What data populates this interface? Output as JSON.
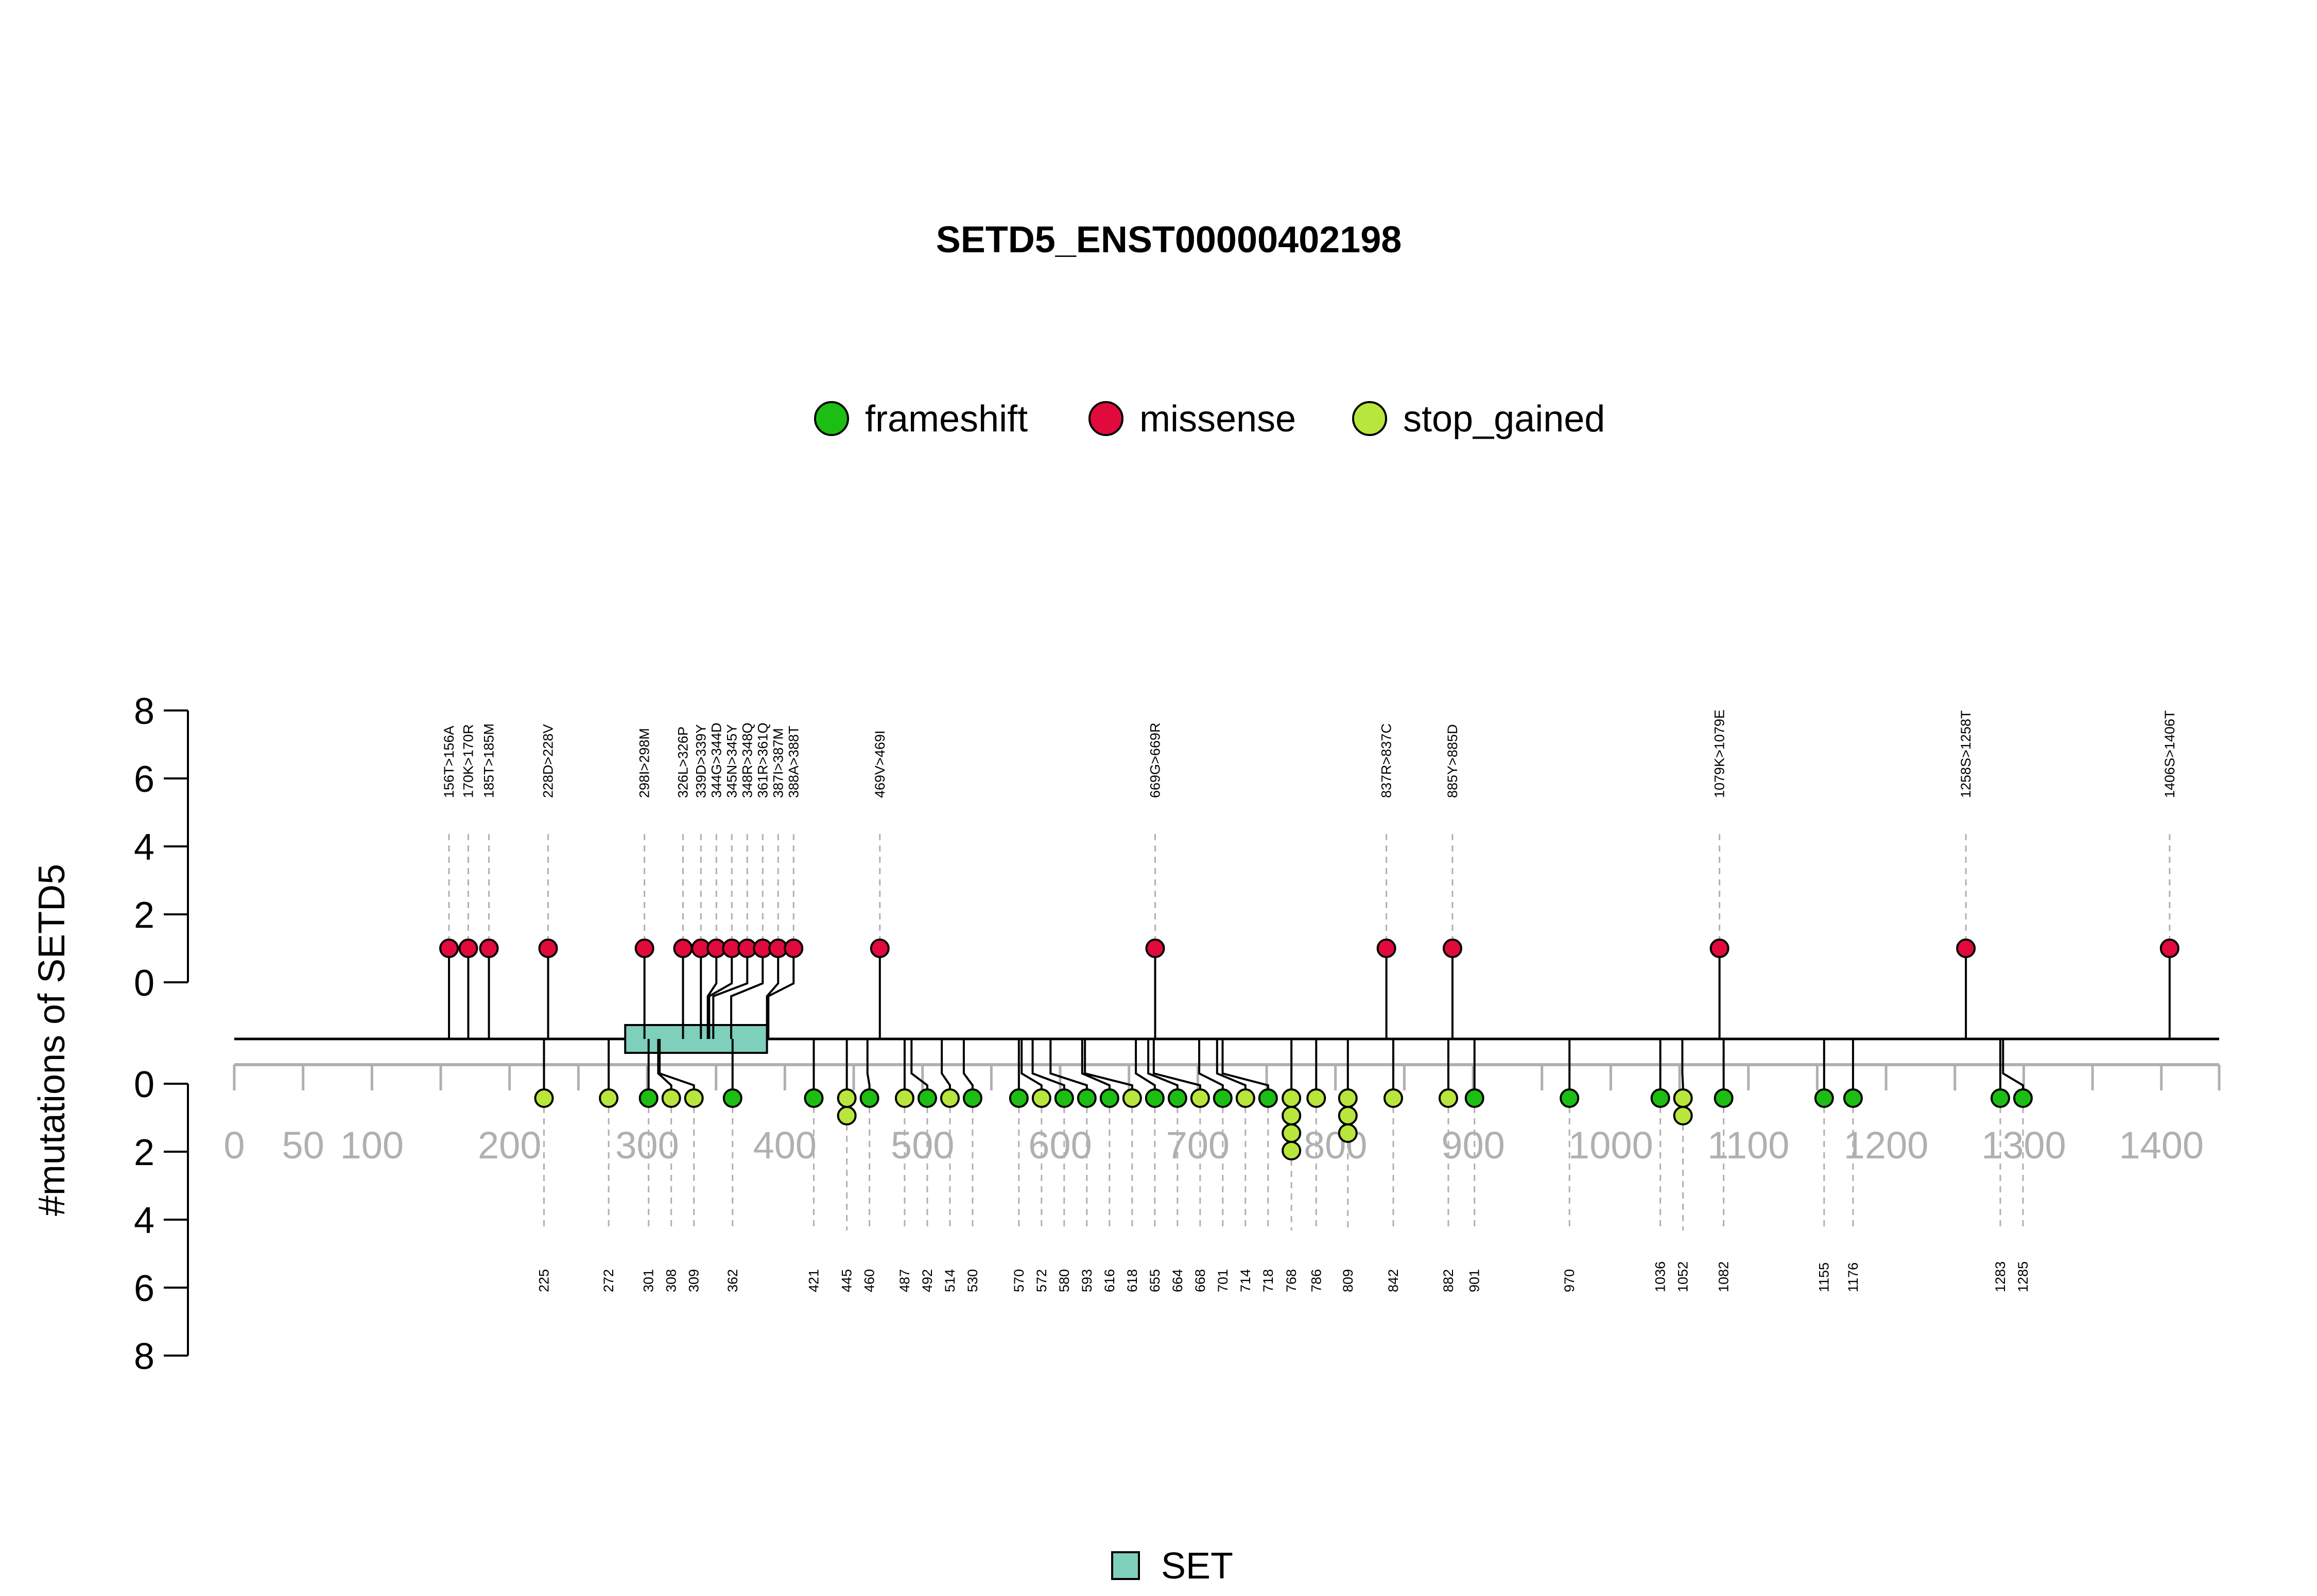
{
  "chart_data": {
    "type": "lollipop",
    "title": "SETD5_ENST00000402198",
    "ylabel": "#mutations of SETD5",
    "xlim": [
      0,
      1442
    ],
    "x_ticks": [
      0,
      50,
      100,
      200,
      300,
      400,
      500,
      600,
      700,
      800,
      900,
      1000,
      1100,
      1200,
      1300,
      1400
    ],
    "y_ticks_upper": [
      0,
      2,
      4,
      6,
      8
    ],
    "y_ticks_lower": [
      0,
      2,
      4,
      6,
      8
    ],
    "ylim": [
      0,
      8
    ],
    "legend_position": "top-center",
    "colors": {
      "frameshift": "#1dbe13",
      "missense": "#e00b3c",
      "stop_gained": "#b9e63c",
      "domain_fill": "#7ecfbc",
      "axis": "#b0b0b0",
      "dashes": "#b0b0b0"
    },
    "legend": [
      {
        "key": "frameshift",
        "label": "frameshift"
      },
      {
        "key": "missense",
        "label": "missense"
      },
      {
        "key": "stop_gained",
        "label": "stop_gained"
      }
    ],
    "domains": [
      {
        "name": "SET",
        "start": 284,
        "end": 387
      }
    ],
    "domain_legend_label": "SET",
    "upper_mutations": [
      {
        "position": 156,
        "label": "156T>156A",
        "count": 1,
        "type": "missense"
      },
      {
        "position": 170,
        "label": "170K>170R",
        "count": 1,
        "type": "missense"
      },
      {
        "position": 185,
        "label": "185T>185M",
        "count": 1,
        "type": "missense"
      },
      {
        "position": 228,
        "label": "228D>228V",
        "count": 1,
        "type": "missense"
      },
      {
        "position": 298,
        "label": "298I>298M",
        "count": 1,
        "type": "missense"
      },
      {
        "position": 326,
        "label": "326L>326P",
        "count": 1,
        "type": "missense"
      },
      {
        "position": 339,
        "label": "339D>339Y",
        "count": 1,
        "type": "missense"
      },
      {
        "position": 344,
        "label": "344G>344D",
        "count": 1,
        "type": "missense"
      },
      {
        "position": 345,
        "label": "345N>345Y",
        "count": 1,
        "type": "missense"
      },
      {
        "position": 348,
        "label": "348R>348Q",
        "count": 1,
        "type": "missense"
      },
      {
        "position": 361,
        "label": "361R>361Q",
        "count": 1,
        "type": "missense"
      },
      {
        "position": 387,
        "label": "387I>387M",
        "count": 1,
        "type": "missense"
      },
      {
        "position": 388,
        "label": "388A>388T",
        "count": 1,
        "type": "missense"
      },
      {
        "position": 469,
        "label": "469V>469I",
        "count": 1,
        "type": "missense"
      },
      {
        "position": 669,
        "label": "669G>669R",
        "count": 1,
        "type": "missense"
      },
      {
        "position": 837,
        "label": "837R>837C",
        "count": 1,
        "type": "missense"
      },
      {
        "position": 885,
        "label": "885Y>885D",
        "count": 1,
        "type": "missense"
      },
      {
        "position": 1079,
        "label": "1079K>1079E",
        "count": 1,
        "type": "missense"
      },
      {
        "position": 1258,
        "label": "1258S>1258T",
        "count": 1,
        "type": "missense"
      },
      {
        "position": 1406,
        "label": "1406S>1406T",
        "count": 1,
        "type": "missense"
      }
    ],
    "lower_mutations": [
      {
        "position": 225,
        "label": "225",
        "types": [
          "stop_gained"
        ]
      },
      {
        "position": 272,
        "label": "272",
        "types": [
          "stop_gained"
        ]
      },
      {
        "position": 301,
        "label": "301",
        "types": [
          "frameshift"
        ]
      },
      {
        "position": 308,
        "label": "308",
        "types": [
          "stop_gained"
        ]
      },
      {
        "position": 309,
        "label": "309",
        "types": [
          "stop_gained"
        ]
      },
      {
        "position": 362,
        "label": "362",
        "types": [
          "frameshift"
        ]
      },
      {
        "position": 421,
        "label": "421",
        "types": [
          "frameshift"
        ]
      },
      {
        "position": 445,
        "label": "445",
        "types": [
          "stop_gained",
          "stop_gained"
        ]
      },
      {
        "position": 460,
        "label": "460",
        "types": [
          "frameshift"
        ]
      },
      {
        "position": 487,
        "label": "487",
        "types": [
          "stop_gained"
        ]
      },
      {
        "position": 492,
        "label": "492",
        "types": [
          "frameshift"
        ]
      },
      {
        "position": 514,
        "label": "514",
        "types": [
          "stop_gained"
        ]
      },
      {
        "position": 530,
        "label": "530",
        "types": [
          "frameshift"
        ]
      },
      {
        "position": 570,
        "label": "570",
        "types": [
          "frameshift"
        ]
      },
      {
        "position": 572,
        "label": "572",
        "types": [
          "stop_gained"
        ]
      },
      {
        "position": 580,
        "label": "580",
        "types": [
          "frameshift"
        ]
      },
      {
        "position": 593,
        "label": "593",
        "types": [
          "frameshift"
        ]
      },
      {
        "position": 616,
        "label": "616",
        "types": [
          "frameshift"
        ]
      },
      {
        "position": 618,
        "label": "618",
        "types": [
          "stop_gained"
        ]
      },
      {
        "position": 655,
        "label": "655",
        "types": [
          "frameshift"
        ]
      },
      {
        "position": 664,
        "label": "664",
        "types": [
          "frameshift"
        ]
      },
      {
        "position": 668,
        "label": "668",
        "types": [
          "stop_gained"
        ]
      },
      {
        "position": 701,
        "label": "701",
        "types": [
          "frameshift"
        ]
      },
      {
        "position": 714,
        "label": "714",
        "types": [
          "stop_gained"
        ]
      },
      {
        "position": 718,
        "label": "718",
        "types": [
          "frameshift"
        ]
      },
      {
        "position": 768,
        "label": "768",
        "types": [
          "stop_gained",
          "stop_gained",
          "stop_gained",
          "stop_gained"
        ]
      },
      {
        "position": 786,
        "label": "786",
        "types": [
          "stop_gained"
        ]
      },
      {
        "position": 809,
        "label": "809",
        "types": [
          "stop_gained",
          "stop_gained",
          "stop_gained"
        ]
      },
      {
        "position": 842,
        "label": "842",
        "types": [
          "stop_gained"
        ]
      },
      {
        "position": 882,
        "label": "882",
        "types": [
          "stop_gained"
        ]
      },
      {
        "position": 901,
        "label": "901",
        "types": [
          "frameshift"
        ]
      },
      {
        "position": 970,
        "label": "970",
        "types": [
          "frameshift"
        ]
      },
      {
        "position": 1036,
        "label": "1036",
        "types": [
          "frameshift"
        ]
      },
      {
        "position": 1052,
        "label": "1052",
        "types": [
          "stop_gained",
          "stop_gained"
        ]
      },
      {
        "position": 1082,
        "label": "1082",
        "types": [
          "frameshift"
        ]
      },
      {
        "position": 1155,
        "label": "1155",
        "types": [
          "frameshift"
        ]
      },
      {
        "position": 1176,
        "label": "1176",
        "types": [
          "frameshift"
        ]
      },
      {
        "position": 1283,
        "label": "1283",
        "types": [
          "frameshift"
        ]
      },
      {
        "position": 1285,
        "label": "1285",
        "types": [
          "frameshift"
        ]
      }
    ]
  }
}
